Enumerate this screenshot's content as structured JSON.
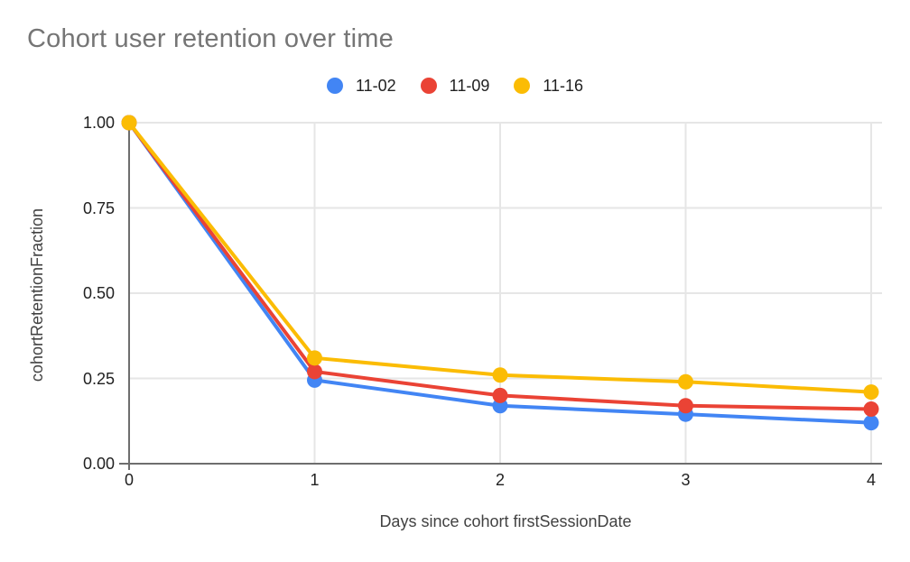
{
  "chart_data": {
    "type": "line",
    "title": "Cohort user retention over time",
    "xlabel": "Days since cohort firstSessionDate",
    "ylabel": "cohortRetentionFraction",
    "x": [
      0,
      1,
      2,
      3,
      4
    ],
    "xticks": [
      "0",
      "1",
      "2",
      "3",
      "4"
    ],
    "yticks": [
      "0.00",
      "0.25",
      "0.50",
      "0.75",
      "1.00"
    ],
    "ylim": [
      0,
      1
    ],
    "grid": true,
    "legend_position": "top-center",
    "series": [
      {
        "name": "11-02",
        "color": "#4285F4",
        "values": [
          1.0,
          0.245,
          0.17,
          0.145,
          0.12
        ]
      },
      {
        "name": "11-09",
        "color": "#EA4335",
        "values": [
          1.0,
          0.27,
          0.2,
          0.17,
          0.16
        ]
      },
      {
        "name": "11-16",
        "color": "#FBBC04",
        "values": [
          1.0,
          0.31,
          0.26,
          0.24,
          0.21
        ]
      }
    ]
  },
  "styles": {
    "background": "#ffffff",
    "title_color": "#757575",
    "tick_label_color": "#212121",
    "axis_title_color": "#424242",
    "legend_label_color": "#212121",
    "gridline_color": "#e6e6e6",
    "axis_line_color": "#6e6e6e"
  }
}
